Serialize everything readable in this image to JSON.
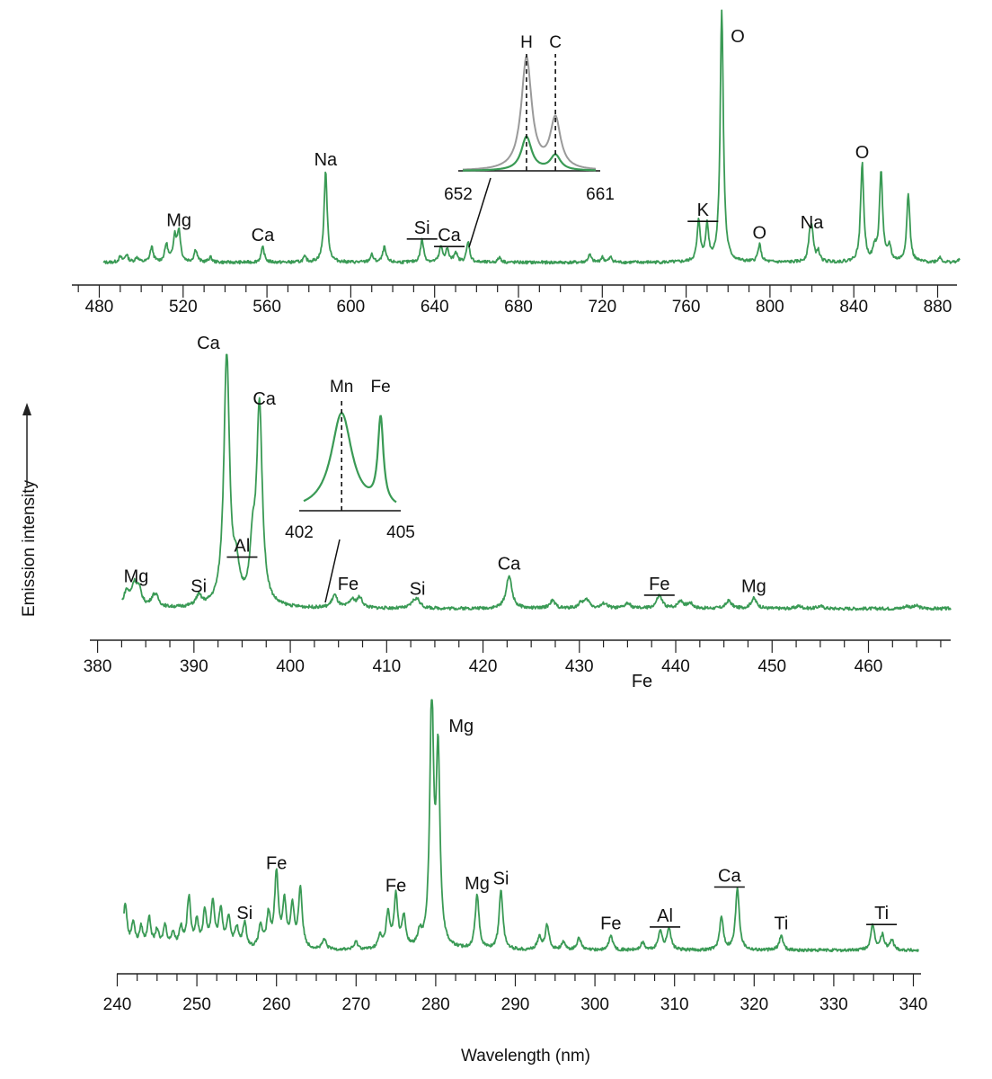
{
  "figure": {
    "ylabel": "Emission intensity",
    "xlabel": "Wavelength (nm)",
    "trace_color": "#3a9a55",
    "axis_color": "#222222"
  },
  "chart_data": [
    {
      "type": "line",
      "id": "panel-top",
      "xlim": [
        470,
        910
      ],
      "ticks": [
        480,
        520,
        560,
        600,
        640,
        680,
        720,
        760,
        800,
        840,
        880
      ],
      "baseline": 0.03,
      "peaks": [
        {
          "x": 490,
          "y": 0.02
        },
        {
          "x": 493,
          "y": 0.03
        },
        {
          "x": 498,
          "y": 0.02
        },
        {
          "x": 505,
          "y": 0.06
        },
        {
          "x": 512,
          "y": 0.07
        },
        {
          "x": 516,
          "y": 0.1
        },
        {
          "x": 518,
          "y": 0.12
        },
        {
          "x": 526,
          "y": 0.05
        },
        {
          "x": 533,
          "y": 0.02
        },
        {
          "x": 558,
          "y": 0.06
        },
        {
          "x": 578,
          "y": 0.02
        },
        {
          "x": 588,
          "y": 0.36
        },
        {
          "x": 610,
          "y": 0.03
        },
        {
          "x": 616,
          "y": 0.06
        },
        {
          "x": 634,
          "y": 0.09
        },
        {
          "x": 643,
          "y": 0.06
        },
        {
          "x": 646,
          "y": 0.05
        },
        {
          "x": 650,
          "y": 0.04
        },
        {
          "x": 656,
          "y": 0.08
        },
        {
          "x": 671,
          "y": 0.02
        },
        {
          "x": 714,
          "y": 0.03
        },
        {
          "x": 720,
          "y": 0.02
        },
        {
          "x": 724,
          "y": 0.02
        },
        {
          "x": 766,
          "y": 0.16
        },
        {
          "x": 770,
          "y": 0.14
        },
        {
          "x": 777,
          "y": 1.0
        },
        {
          "x": 795,
          "y": 0.07
        },
        {
          "x": 819,
          "y": 0.08
        },
        {
          "x": 820,
          "y": 0.11
        },
        {
          "x": 823,
          "y": 0.04
        },
        {
          "x": 844,
          "y": 0.39
        },
        {
          "x": 850,
          "y": 0.05
        },
        {
          "x": 853,
          "y": 0.36
        },
        {
          "x": 857,
          "y": 0.06
        },
        {
          "x": 866,
          "y": 0.27
        },
        {
          "x": 881,
          "y": 0.02
        },
        {
          "x": 892,
          "y": 0.04
        }
      ],
      "labels": [
        {
          "text": "Mg",
          "x": 518,
          "y": 0.12
        },
        {
          "text": "Ca",
          "x": 558,
          "y": 0.06
        },
        {
          "text": "Na",
          "x": 588,
          "y": 0.36
        },
        {
          "text": "Si",
          "x": 634,
          "y": 0.09,
          "underline": true
        },
        {
          "text": "Ca",
          "x": 647,
          "y": 0.06,
          "underline": true
        },
        {
          "text": "K",
          "x": 768,
          "y": 0.16,
          "underline": true
        },
        {
          "text": "O",
          "x": 777,
          "y": 1.0,
          "side": "right"
        },
        {
          "text": "O",
          "x": 795,
          "y": 0.07
        },
        {
          "text": "Na",
          "x": 820,
          "y": 0.11
        },
        {
          "text": "O",
          "x": 844,
          "y": 0.39
        }
      ],
      "inset": {
        "xlim": [
          652,
          661
        ],
        "tick_labels": [
          "652",
          "661"
        ],
        "lines": [
          {
            "text": "H",
            "x": 656.3
          },
          {
            "text": "C",
            "x": 658.4
          }
        ],
        "pointer_x": 656
      }
    },
    {
      "type": "line",
      "id": "panel-middle",
      "xlim": [
        378,
        469
      ],
      "ticks": [
        380,
        390,
        400,
        410,
        420,
        430,
        440,
        450,
        460
      ],
      "baseline": 0.03,
      "peaks": [
        {
          "x": 383,
          "y": 0.06
        },
        {
          "x": 383.8,
          "y": 0.08
        },
        {
          "x": 384.3,
          "y": 0.06
        },
        {
          "x": 385.8,
          "y": 0.03
        },
        {
          "x": 386.1,
          "y": 0.03
        },
        {
          "x": 390.5,
          "y": 0.04
        },
        {
          "x": 393.4,
          "y": 1.0
        },
        {
          "x": 394.4,
          "y": 0.12
        },
        {
          "x": 396.1,
          "y": 0.2
        },
        {
          "x": 396.8,
          "y": 0.78
        },
        {
          "x": 404.6,
          "y": 0.05
        },
        {
          "x": 406.4,
          "y": 0.03
        },
        {
          "x": 407.2,
          "y": 0.04
        },
        {
          "x": 412.8,
          "y": 0.02
        },
        {
          "x": 413.2,
          "y": 0.03
        },
        {
          "x": 422.7,
          "y": 0.13
        },
        {
          "x": 427.2,
          "y": 0.03
        },
        {
          "x": 430.2,
          "y": 0.02
        },
        {
          "x": 430.8,
          "y": 0.03
        },
        {
          "x": 432.6,
          "y": 0.02
        },
        {
          "x": 435,
          "y": 0.02
        },
        {
          "x": 438.3,
          "y": 0.05
        },
        {
          "x": 440.5,
          "y": 0.03
        },
        {
          "x": 441.5,
          "y": 0.02
        },
        {
          "x": 445.5,
          "y": 0.03
        },
        {
          "x": 448.1,
          "y": 0.04
        },
        {
          "x": 452.8,
          "y": 0.01
        },
        {
          "x": 455,
          "y": 0.01
        },
        {
          "x": 464,
          "y": 0.01
        },
        {
          "x": 465,
          "y": 0.01
        }
      ],
      "labels": [
        {
          "text": "Mg",
          "x": 384,
          "y": 0.08
        },
        {
          "text": "Si",
          "x": 390.5,
          "y": 0.04
        },
        {
          "text": "Ca",
          "x": 391.5,
          "y": 1.0
        },
        {
          "text": "Al",
          "x": 395,
          "y": 0.2,
          "underline": true
        },
        {
          "text": "Ca",
          "x": 397.3,
          "y": 0.78
        },
        {
          "text": "Fe",
          "x": 406,
          "y": 0.05
        },
        {
          "text": "Si",
          "x": 413.2,
          "y": 0.03
        },
        {
          "text": "Ca",
          "x": 422.7,
          "y": 0.13
        },
        {
          "text": "Fe",
          "x": 438.3,
          "y": 0.05,
          "underline": true
        },
        {
          "text": "Mg",
          "x": 448.1,
          "y": 0.04
        }
      ],
      "below_axis_label": {
        "text": "Fe",
        "x": 436.5
      },
      "inset": {
        "xlim": [
          402,
          405
        ],
        "tick_labels": [
          "402",
          "405"
        ],
        "lines": [
          {
            "text": "Mn",
            "x": 403.2
          }
        ],
        "extra_labels": [
          {
            "text": "Fe",
            "x": 404.6
          }
        ],
        "pointer_x": 403
      }
    },
    {
      "type": "line",
      "id": "panel-bottom",
      "xlim": [
        240,
        340
      ],
      "ticks": [
        240,
        250,
        260,
        270,
        280,
        290,
        300,
        310,
        320,
        330,
        340
      ],
      "baseline": 0.03,
      "peaks": [
        {
          "x": 241,
          "y": 0.18
        },
        {
          "x": 242,
          "y": 0.1
        },
        {
          "x": 243,
          "y": 0.08
        },
        {
          "x": 244,
          "y": 0.12
        },
        {
          "x": 245,
          "y": 0.07
        },
        {
          "x": 246,
          "y": 0.09
        },
        {
          "x": 247,
          "y": 0.06
        },
        {
          "x": 248,
          "y": 0.08
        },
        {
          "x": 249,
          "y": 0.2
        },
        {
          "x": 250,
          "y": 0.1
        },
        {
          "x": 251,
          "y": 0.14
        },
        {
          "x": 252,
          "y": 0.18
        },
        {
          "x": 253,
          "y": 0.15
        },
        {
          "x": 254,
          "y": 0.12
        },
        {
          "x": 255,
          "y": 0.08
        },
        {
          "x": 256,
          "y": 0.1
        },
        {
          "x": 258,
          "y": 0.09
        },
        {
          "x": 259,
          "y": 0.13
        },
        {
          "x": 260,
          "y": 0.3
        },
        {
          "x": 261,
          "y": 0.18
        },
        {
          "x": 262,
          "y": 0.16
        },
        {
          "x": 263,
          "y": 0.24
        },
        {
          "x": 266,
          "y": 0.04
        },
        {
          "x": 270,
          "y": 0.03
        },
        {
          "x": 273,
          "y": 0.05
        },
        {
          "x": 274,
          "y": 0.14
        },
        {
          "x": 275,
          "y": 0.21
        },
        {
          "x": 276,
          "y": 0.12
        },
        {
          "x": 278,
          "y": 0.05
        },
        {
          "x": 279.5,
          "y": 1.0
        },
        {
          "x": 280.3,
          "y": 0.76
        },
        {
          "x": 285.2,
          "y": 0.22
        },
        {
          "x": 288.2,
          "y": 0.24
        },
        {
          "x": 293,
          "y": 0.05
        },
        {
          "x": 294,
          "y": 0.1
        },
        {
          "x": 296,
          "y": 0.03
        },
        {
          "x": 298,
          "y": 0.05
        },
        {
          "x": 302,
          "y": 0.06
        },
        {
          "x": 306,
          "y": 0.03
        },
        {
          "x": 308.2,
          "y": 0.08
        },
        {
          "x": 309.3,
          "y": 0.09
        },
        {
          "x": 315.9,
          "y": 0.13
        },
        {
          "x": 317.9,
          "y": 0.25
        },
        {
          "x": 323.4,
          "y": 0.06
        },
        {
          "x": 334.9,
          "y": 0.1
        },
        {
          "x": 336.1,
          "y": 0.06
        },
        {
          "x": 337.3,
          "y": 0.04
        }
      ],
      "labels": [
        {
          "text": "Si",
          "x": 256,
          "y": 0.1
        },
        {
          "text": "Fe",
          "x": 260,
          "y": 0.3
        },
        {
          "text": "Fe",
          "x": 275,
          "y": 0.21
        },
        {
          "text": "Mg",
          "x": 280.5,
          "y": 1.0,
          "side": "right"
        },
        {
          "text": "Mg",
          "x": 285.2,
          "y": 0.22
        },
        {
          "text": "Si",
          "x": 288.2,
          "y": 0.24
        },
        {
          "text": "Fe",
          "x": 302,
          "y": 0.06
        },
        {
          "text": "Al",
          "x": 308.8,
          "y": 0.09,
          "underline": true
        },
        {
          "text": "Ca",
          "x": 316.9,
          "y": 0.25,
          "underline": true
        },
        {
          "text": "Ti",
          "x": 323.4,
          "y": 0.06
        },
        {
          "text": "Ti",
          "x": 336,
          "y": 0.1,
          "underline": true
        }
      ]
    }
  ]
}
